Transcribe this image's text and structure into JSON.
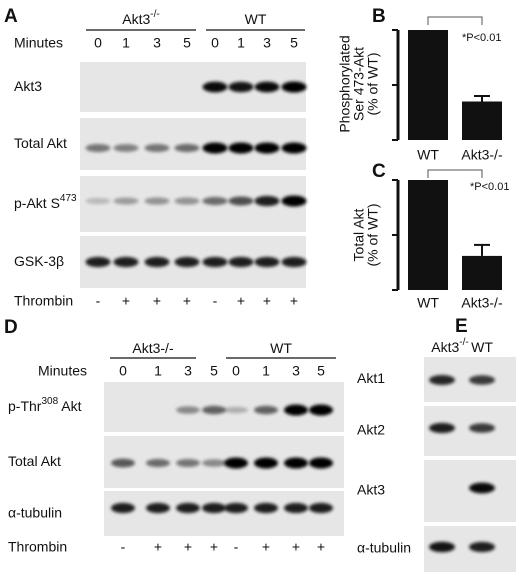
{
  "panel_a": {
    "letter": "A",
    "groups": [
      {
        "text": "Akt3",
        "sup": "-/-"
      },
      {
        "text": "WT"
      }
    ],
    "minutes_label": "Minutes",
    "minutes": [
      "0",
      "1",
      "3",
      "5",
      "0",
      "1",
      "3",
      "5"
    ],
    "rows": [
      {
        "text": "Akt3"
      },
      {
        "text": "Total Akt"
      },
      {
        "text": "p-Akt S",
        "sup": "473"
      },
      {
        "text": "GSK-3β"
      }
    ],
    "treatment_label": "Thrombin",
    "treatment": [
      "-",
      "+",
      "+",
      "+",
      "-",
      "+",
      "+",
      "+"
    ]
  },
  "panel_d": {
    "letter": "D",
    "groups": [
      {
        "text": "Akt3-/-"
      },
      {
        "text": "WT"
      }
    ],
    "minutes_label": "Minutes",
    "minutes": [
      "0",
      "1",
      "3",
      "5",
      "0",
      "1",
      "3",
      "5"
    ],
    "rows": [
      {
        "text": "p-Thr",
        "sup": "308",
        "tail": " Akt"
      },
      {
        "text": "Total Akt"
      },
      {
        "text": "α-tubulin"
      }
    ],
    "treatment_label": "Thrombin",
    "treatment": [
      "-",
      "+",
      "+",
      "+",
      "-",
      "+",
      "+",
      "+"
    ]
  },
  "panel_e": {
    "letter": "E",
    "columns": [
      {
        "text": "Akt3",
        "sup": "-/-"
      },
      {
        "text": "WT"
      }
    ],
    "rows": [
      "Akt1",
      "Akt2",
      "Akt3",
      "α-tubulin"
    ]
  },
  "chart_data": [
    {
      "type": "bar",
      "panel": "B",
      "ylabel": [
        "Phosphorylated",
        "Ser 473-Akt",
        "(% of WT)"
      ],
      "categories": [
        "WT",
        "Akt3-/-"
      ],
      "values": [
        100,
        35
      ],
      "errors": [
        null,
        5
      ],
      "annotation": "*P<0.01",
      "ylim": [
        0,
        100
      ],
      "yticks": [
        0,
        50,
        100
      ],
      "color": "#111111"
    },
    {
      "type": "bar",
      "panel": "C",
      "ylabel": [
        "Total Akt",
        "(% of WT)"
      ],
      "categories": [
        "WT",
        "Akt3-/-"
      ],
      "values": [
        100,
        31
      ],
      "errors": [
        null,
        10
      ],
      "annotation": "*P<0.01",
      "ylim": [
        0,
        100
      ],
      "yticks": [
        0,
        50,
        100
      ],
      "color": "#111111"
    }
  ]
}
